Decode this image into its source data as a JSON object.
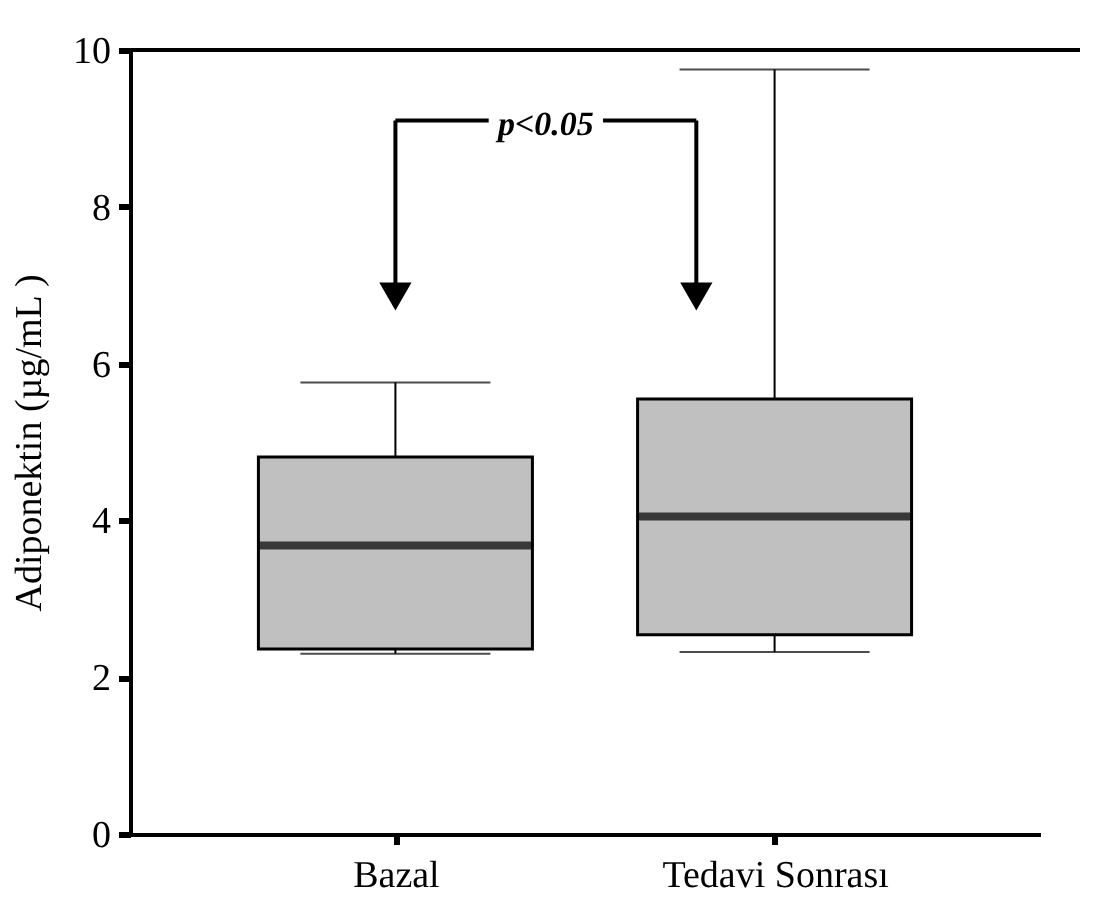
{
  "chart_data": {
    "type": "box",
    "ylabel": "Adiponektin (µg/mL )",
    "categories": [
      "Bazal",
      "Tedavi Sonrası"
    ],
    "boxes": [
      {
        "low": 2.3,
        "q1": 2.36,
        "median": 3.68,
        "q3": 4.81,
        "high": 5.76
      },
      {
        "low": 2.32,
        "q1": 2.54,
        "median": 4.05,
        "q3": 5.55,
        "high": 9.75
      }
    ],
    "color": "#c0c0c0",
    "ylim": [
      0,
      10
    ],
    "yticks": [
      0,
      2,
      4,
      6,
      8,
      10
    ],
    "grid": false,
    "annotations": [
      "p<0.05"
    ]
  }
}
